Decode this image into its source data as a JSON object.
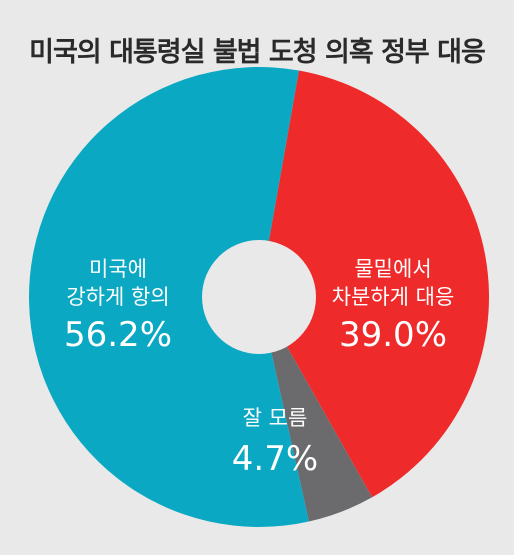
{
  "title": "미국의 대통령실 불법 도청 의혹 정부 대응",
  "chart_data": {
    "type": "pie",
    "title": "미국의 대통령실 불법 도청 의혹 정부 대응",
    "categories": [
      {
        "line1": "물밑에서",
        "line2": "차분하게 대응",
        "full": "물밑에서 차분하게 대응"
      },
      {
        "line1": "잘 모름",
        "line2": "",
        "full": "잘 모름"
      },
      {
        "line1": "미국에",
        "line2": "강하게 항의",
        "full": "미국에 강하게 항의"
      }
    ],
    "values": [
      39.0,
      4.7,
      56.2
    ],
    "value_labels": [
      "39.0%",
      "4.7%",
      "56.2%"
    ],
    "colors": [
      "#ee2a2a",
      "#6b6b6e",
      "#0aa8c2"
    ],
    "donut": true
  }
}
